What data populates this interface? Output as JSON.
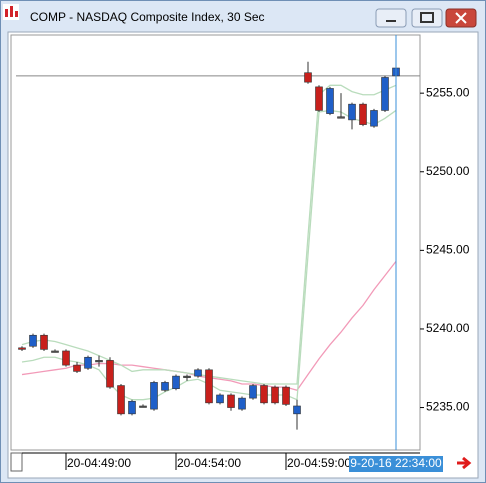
{
  "window": {
    "title": "COMP - NASDAQ Composite Index, 30 Sec"
  },
  "chart_data": {
    "type": "candlestick",
    "categories": [
      null,
      null,
      null,
      null,
      "20-04:49:00",
      null,
      null,
      null,
      null,
      null,
      null,
      null,
      null,
      null,
      "20-04:54:00",
      null,
      null,
      null,
      null,
      null,
      null,
      null,
      null,
      null,
      "20-04:59:00",
      null,
      null,
      null,
      null,
      null,
      null,
      null,
      null,
      null,
      null
    ],
    "open": [
      5238.8,
      5238.9,
      5239.6,
      5238.6,
      5238.6,
      5237.7,
      5237.5,
      5238.0,
      5238.0,
      5236.4,
      5234.6,
      5235.1,
      5234.9,
      5236.1,
      5236.2,
      5237.0,
      5237.0,
      5237.4,
      5235.3,
      5235.8,
      5234.9,
      5235.6,
      5236.4,
      5236.3,
      5236.3,
      5234.6,
      5256.3,
      5255.4,
      5253.7,
      5253.5,
      5253.3,
      5254.3,
      5252.9,
      5253.9,
      5256.1
    ],
    "high": [
      5238.9,
      5239.7,
      5239.7,
      5238.7,
      5238.7,
      5237.9,
      5238.3,
      5238.3,
      5238.2,
      5236.5,
      5235.5,
      5235.2,
      5236.7,
      5236.7,
      5237.1,
      5237.1,
      5237.5,
      5237.5,
      5235.9,
      5235.9,
      5235.7,
      5236.5,
      5236.5,
      5236.4,
      5236.4,
      5235.5,
      5257.0,
      5255.5,
      5255.4,
      5255.0,
      5254.4,
      5254.4,
      5254.0,
      5256.1,
      5257.9
    ],
    "low": [
      5238.6,
      5238.8,
      5238.6,
      5238.5,
      5237.6,
      5237.2,
      5237.4,
      5237.6,
      5236.2,
      5234.5,
      5234.5,
      5235.0,
      5234.8,
      5236.0,
      5236.1,
      5236.7,
      5236.9,
      5235.2,
      5235.2,
      5234.8,
      5234.8,
      5235.5,
      5235.2,
      5235.2,
      5235.1,
      5233.6,
      5255.6,
      5253.8,
      5253.6,
      5253.4,
      5252.7,
      5252.9,
      5252.8,
      5253.8,
      5256.0
    ],
    "close": [
      5238.7,
      5239.6,
      5238.7,
      5238.6,
      5237.7,
      5237.3,
      5238.2,
      5238.0,
      5236.3,
      5234.6,
      5235.4,
      5235.1,
      5236.6,
      5236.6,
      5237.0,
      5237.0,
      5237.4,
      5235.3,
      5235.8,
      5235.0,
      5235.6,
      5236.4,
      5235.3,
      5235.3,
      5235.2,
      5235.1,
      5255.7,
      5253.9,
      5255.3,
      5253.5,
      5254.3,
      5253.0,
      5253.9,
      5256.0,
      5256.6
    ],
    "up_color": "#1f5fc8",
    "down_color": "#c8201c",
    "flat_color": "#555555",
    "lines": [
      {
        "color": "#f29ab8",
        "values": [
          5237.1,
          5237.2,
          5237.3,
          5237.4,
          5237.5,
          5237.7,
          5237.7,
          5237.8,
          5237.8,
          5237.7,
          5237.7,
          5237.6,
          5237.5,
          5237.4,
          5237.3,
          5237.2,
          5237.0,
          5236.9,
          5236.8,
          5236.7,
          5236.5,
          5236.5,
          5236.4,
          5236.3,
          5236.3,
          5236.1,
          5237.1,
          5238.1,
          5239.0,
          5239.8,
          5240.7,
          5241.5,
          5242.5,
          5243.4,
          5244.3
        ]
      },
      {
        "color": "#b9dcbc",
        "values": [
          5239.0,
          5239.2,
          5239.3,
          5239.2,
          5239.0,
          5238.8,
          5238.6,
          5238.3,
          5238.0,
          5237.7,
          5237.3,
          5237.4,
          5237.4,
          5237.4,
          5237.3,
          5237.2,
          5237.1,
          5237.0,
          5236.9,
          5236.8,
          5236.7,
          5236.6,
          5236.5,
          5236.5,
          5236.5,
          5236.5,
          5245.9,
          5254.9,
          5255.5,
          5255.5,
          5255.1,
          5254.9,
          5254.9,
          5255.2,
          5255.5
        ]
      },
      {
        "color": "#b9dcbc",
        "values": [
          5237.9,
          5238.0,
          5238.2,
          5238.2,
          5238.0,
          5237.9,
          5237.7,
          5237.4,
          5236.5,
          5235.8,
          5235.5,
          5235.5,
          5235.6,
          5236.0,
          5236.3,
          5236.7,
          5236.8,
          5236.5,
          5236.1,
          5236.0,
          5235.9,
          5235.8,
          5235.8,
          5235.8,
          5235.8,
          5235.5,
          5244.7,
          5253.8,
          5253.9,
          5253.8,
          5253.4,
          5253.2,
          5253.0,
          5253.4,
          5253.9
        ]
      }
    ],
    "price_line": 5256.1,
    "cursor_label": "9-20-16 22:34:00",
    "ylim": [
      5232.3,
      5258.7
    ],
    "yticks": [
      {
        "value": 5235,
        "label": "5235.00"
      },
      {
        "value": 5240,
        "label": "5240.00"
      },
      {
        "value": 5245,
        "label": "5245.00"
      },
      {
        "value": 5250,
        "label": "5250.00"
      },
      {
        "value": 5255,
        "label": "5255.00"
      }
    ]
  }
}
